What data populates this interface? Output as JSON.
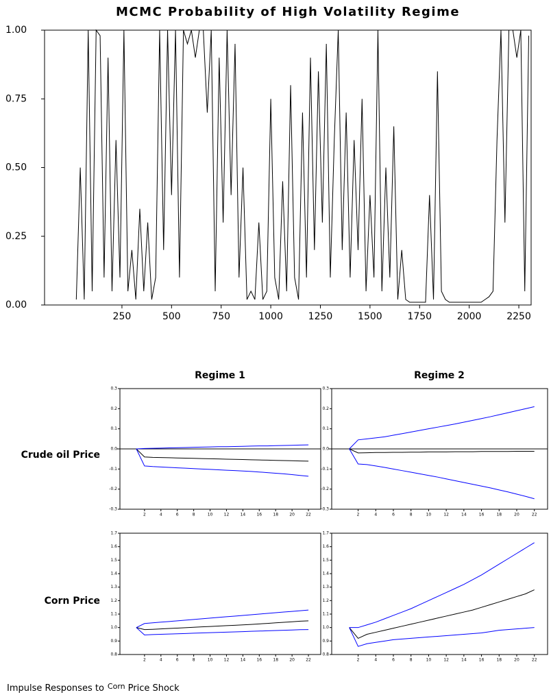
{
  "chart_data": [
    {
      "type": "line",
      "title": "MCMC Probability of High Volatility Regime",
      "x": [
        20,
        40,
        60,
        80,
        100,
        120,
        140,
        160,
        180,
        200,
        220,
        240,
        260,
        280,
        300,
        320,
        340,
        360,
        380,
        400,
        420,
        440,
        460,
        480,
        500,
        520,
        540,
        560,
        580,
        600,
        620,
        640,
        660,
        680,
        700,
        720,
        740,
        760,
        780,
        800,
        820,
        840,
        860,
        880,
        900,
        920,
        940,
        960,
        980,
        1000,
        1020,
        1040,
        1060,
        1080,
        1100,
        1120,
        1140,
        1160,
        1180,
        1200,
        1220,
        1240,
        1260,
        1280,
        1300,
        1320,
        1340,
        1360,
        1380,
        1400,
        1420,
        1440,
        1460,
        1480,
        1500,
        1520,
        1540,
        1560,
        1580,
        1600,
        1620,
        1640,
        1660,
        1680,
        1700,
        1720,
        1740,
        1760,
        1780,
        1800,
        1820,
        1840,
        1860,
        1880,
        1900,
        1920,
        1940,
        1960,
        1980,
        2000,
        2020,
        2040,
        2060,
        2080,
        2100,
        2120,
        2140,
        2160,
        2180,
        2200,
        2220,
        2240,
        2260,
        2280,
        2300
      ],
      "series": [
        {
          "color": "#000000",
          "values": [
            0.02,
            0.5,
            0.02,
            1,
            0.05,
            1,
            0.98,
            0.1,
            0.9,
            0.05,
            0.6,
            0.1,
            1,
            0.05,
            0.2,
            0.02,
            0.35,
            0.05,
            0.3,
            0.02,
            0.1,
            1,
            0.2,
            1,
            0.4,
            1,
            0.1,
            1,
            0.95,
            1,
            0.9,
            1,
            1,
            0.7,
            1,
            0.05,
            0.9,
            0.3,
            1,
            0.4,
            0.95,
            0.1,
            0.5,
            0.02,
            0.05,
            0.02,
            0.3,
            0.02,
            0.05,
            0.75,
            0.1,
            0.02,
            0.45,
            0.05,
            0.8,
            0.1,
            0.02,
            0.7,
            0.1,
            0.9,
            0.2,
            0.85,
            0.3,
            0.95,
            0.1,
            0.6,
            1,
            0.2,
            0.7,
            0.1,
            0.6,
            0.2,
            0.75,
            0.05,
            0.4,
            0.1,
            1,
            0.05,
            0.5,
            0.1,
            0.65,
            0.02,
            0.2,
            0.02,
            0.01,
            0.01,
            0.01,
            0.01,
            0.01,
            0.4,
            0.02,
            0.85,
            0.05,
            0.02,
            0.01,
            0.01,
            0.01,
            0.01,
            0.01,
            0.01,
            0.01,
            0.01,
            0.01,
            0.02,
            0.03,
            0.05,
            0.6,
            1,
            0.3,
            1,
            1,
            0.9,
            1,
            0.05,
            0.98
          ]
        }
      ],
      "xlim": [
        -140,
        2312
      ],
      "xticks": [
        250,
        500,
        750,
        1000,
        1250,
        1500,
        1750,
        2000,
        2250
      ],
      "ylim": [
        0,
        1
      ],
      "yticks": [
        {
          "value": 0,
          "label": "0.00"
        },
        {
          "value": 0.25,
          "label": "0.25"
        },
        {
          "value": 0.5,
          "label": "0.50"
        },
        {
          "value": 0.75,
          "label": "0.75"
        },
        {
          "value": 1,
          "label": "1.00"
        }
      ]
    },
    {
      "type": "line",
      "x": [
        1,
        2,
        3,
        4,
        5,
        6,
        7,
        8,
        9,
        10,
        11,
        12,
        13,
        14,
        15,
        16,
        17,
        18,
        19,
        20,
        21,
        22
      ],
      "series": [
        {
          "color": "#0000ff",
          "values": [
            0,
            0.002,
            0.003,
            0.004,
            0.005,
            0.006,
            0.007,
            0.008,
            0.009,
            0.01,
            0.011,
            0.011,
            0.012,
            0.013,
            0.014,
            0.015,
            0.015,
            0.016,
            0.017,
            0.018,
            0.019,
            0.02
          ]
        },
        {
          "color": "#000000",
          "values": [
            0,
            -0.04,
            -0.042,
            -0.043,
            -0.044,
            -0.045,
            -0.046,
            -0.047,
            -0.048,
            -0.049,
            -0.05,
            -0.051,
            -0.052,
            -0.053,
            -0.054,
            -0.055,
            -0.056,
            -0.057,
            -0.058,
            -0.059,
            -0.06,
            -0.061
          ]
        },
        {
          "color": "#0000ff",
          "values": [
            0,
            -0.085,
            -0.088,
            -0.09,
            -0.092,
            -0.094,
            -0.096,
            -0.098,
            -0.1,
            -0.102,
            -0.104,
            -0.106,
            -0.108,
            -0.11,
            -0.112,
            -0.115,
            -0.118,
            -0.121,
            -0.124,
            -0.128,
            -0.132,
            -0.136
          ]
        }
      ],
      "xlim": [
        -1,
        23.5
      ],
      "xticks": [
        2,
        4,
        6,
        8,
        10,
        12,
        14,
        16,
        18,
        20,
        22
      ],
      "ylim": [
        -0.3,
        0.3
      ],
      "yticks": [
        -0.3,
        -0.2,
        -0.1,
        {
          "value": 0,
          "label": "0.0"
        },
        0.1,
        0.2,
        0.3
      ],
      "zero_line": true
    },
    {
      "type": "line",
      "x": [
        1,
        2,
        3,
        4,
        5,
        6,
        7,
        8,
        9,
        10,
        11,
        12,
        13,
        14,
        15,
        16,
        17,
        18,
        19,
        20,
        21,
        22
      ],
      "series": [
        {
          "color": "#0000ff",
          "values": [
            0,
            0.045,
            0.05,
            0.055,
            0.06,
            0.068,
            0.076,
            0.084,
            0.092,
            0.1,
            0.108,
            0.116,
            0.124,
            0.133,
            0.142,
            0.151,
            0.16,
            0.17,
            0.18,
            0.19,
            0.2,
            0.21
          ]
        },
        {
          "color": "#000000",
          "values": [
            0,
            -0.02,
            -0.019,
            -0.018,
            -0.018,
            -0.017,
            -0.017,
            -0.016,
            -0.016,
            -0.015,
            -0.015,
            -0.015,
            -0.014,
            -0.014,
            -0.014,
            -0.013,
            -0.013,
            -0.013,
            -0.013,
            -0.012,
            -0.012,
            -0.012
          ]
        },
        {
          "color": "#0000ff",
          "values": [
            0,
            -0.075,
            -0.078,
            -0.085,
            -0.092,
            -0.1,
            -0.108,
            -0.116,
            -0.124,
            -0.132,
            -0.14,
            -0.149,
            -0.158,
            -0.167,
            -0.176,
            -0.185,
            -0.194,
            -0.204,
            -0.214,
            -0.225,
            -0.236,
            -0.248
          ]
        }
      ],
      "xlim": [
        -1,
        23.5
      ],
      "xticks": [
        2,
        4,
        6,
        8,
        10,
        12,
        14,
        16,
        18,
        20,
        22
      ],
      "ylim": [
        -0.3,
        0.3
      ],
      "yticks": [
        -0.3,
        -0.2,
        -0.1,
        {
          "value": 0,
          "label": "0.0"
        },
        0.1,
        0.2,
        0.3
      ],
      "zero_line": true
    },
    {
      "type": "line",
      "x": [
        1,
        2,
        3,
        4,
        5,
        6,
        7,
        8,
        9,
        10,
        11,
        12,
        13,
        14,
        15,
        16,
        17,
        18,
        19,
        20,
        21,
        22
      ],
      "series": [
        {
          "color": "#0000ff",
          "values": [
            1,
            1.03,
            1.035,
            1.04,
            1.045,
            1.05,
            1.055,
            1.06,
            1.065,
            1.07,
            1.075,
            1.08,
            1.085,
            1.09,
            1.095,
            1.1,
            1.105,
            1.11,
            1.115,
            1.12,
            1.125,
            1.13
          ]
        },
        {
          "color": "#000000",
          "values": [
            1,
            0.985,
            0.987,
            0.99,
            0.993,
            0.996,
            0.999,
            1.002,
            1.005,
            1.008,
            1.011,
            1.014,
            1.017,
            1.02,
            1.023,
            1.027,
            1.031,
            1.035,
            1.039,
            1.043,
            1.047,
            1.05
          ]
        },
        {
          "color": "#0000ff",
          "values": [
            1,
            0.945,
            0.948,
            0.95,
            0.952,
            0.954,
            0.956,
            0.958,
            0.96,
            0.962,
            0.964,
            0.966,
            0.968,
            0.97,
            0.972,
            0.974,
            0.976,
            0.978,
            0.98,
            0.982,
            0.984,
            0.985
          ]
        }
      ],
      "xlim": [
        -1,
        23.5
      ],
      "xticks": [
        2,
        4,
        6,
        8,
        10,
        12,
        14,
        16,
        18,
        20,
        22
      ],
      "ylim": [
        0.8,
        1.7
      ],
      "yticks": [
        0.8,
        0.9,
        {
          "value": 1,
          "label": "1.0"
        },
        1.1,
        1.2,
        1.3,
        1.4,
        1.5,
        1.6,
        1.7
      ]
    },
    {
      "type": "line",
      "x": [
        1,
        2,
        3,
        4,
        5,
        6,
        7,
        8,
        9,
        10,
        11,
        12,
        13,
        14,
        15,
        16,
        17,
        18,
        19,
        20,
        21,
        22
      ],
      "series": [
        {
          "color": "#0000ff",
          "values": [
            1,
            1,
            1.02,
            1.04,
            1.065,
            1.09,
            1.115,
            1.14,
            1.17,
            1.2,
            1.23,
            1.26,
            1.29,
            1.32,
            1.355,
            1.39,
            1.43,
            1.47,
            1.51,
            1.55,
            1.59,
            1.63
          ]
        },
        {
          "color": "#000000",
          "values": [
            1,
            0.92,
            0.95,
            0.965,
            0.98,
            0.995,
            1.01,
            1.025,
            1.04,
            1.055,
            1.07,
            1.085,
            1.1,
            1.115,
            1.13,
            1.15,
            1.17,
            1.19,
            1.21,
            1.23,
            1.25,
            1.28
          ]
        },
        {
          "color": "#0000ff",
          "values": [
            1,
            0.86,
            0.88,
            0.89,
            0.9,
            0.91,
            0.915,
            0.92,
            0.925,
            0.93,
            0.935,
            0.94,
            0.945,
            0.95,
            0.955,
            0.96,
            0.97,
            0.98,
            0.985,
            0.99,
            0.995,
            1
          ]
        }
      ],
      "xlim": [
        -1,
        23.5
      ],
      "xticks": [
        2,
        4,
        6,
        8,
        10,
        12,
        14,
        16,
        18,
        20,
        22
      ],
      "ylim": [
        0.8,
        1.7
      ],
      "yticks": [
        0.8,
        0.9,
        {
          "value": 1,
          "label": "1.0"
        },
        1.1,
        1.2,
        1.3,
        1.4,
        1.5,
        1.6,
        1.7
      ]
    }
  ],
  "panels": {
    "column_titles": [
      "Regime 1",
      "Regime 2"
    ],
    "row_titles": [
      "Crude oil Price",
      "Corn Price"
    ],
    "caption": [
      "Impulse Responses to",
      "Corn",
      "Price Shock"
    ]
  }
}
